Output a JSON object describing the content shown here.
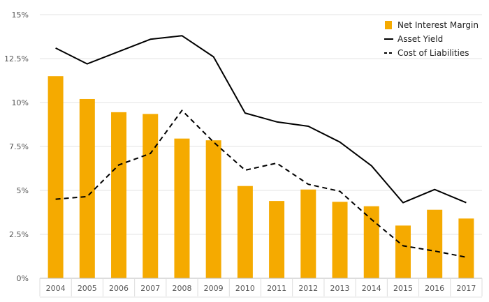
{
  "chart_data": {
    "type": "bar",
    "categories": [
      "2004",
      "2005",
      "2006",
      "2007",
      "2008",
      "2009",
      "2010",
      "2011",
      "2012",
      "2013",
      "2014",
      "2015",
      "2016",
      "2017"
    ],
    "series": [
      {
        "name": "Net Interest Margin",
        "type": "bar",
        "color": "#f5aa00",
        "values": [
          11.5,
          10.2,
          9.45,
          9.35,
          7.95,
          7.85,
          5.25,
          4.4,
          5.05,
          4.35,
          4.1,
          3.0,
          3.9,
          3.4
        ]
      },
      {
        "name": "Asset Yield",
        "type": "line",
        "style": "solid",
        "color": "#000000",
        "values": [
          13.1,
          12.2,
          12.9,
          13.6,
          13.8,
          12.6,
          9.4,
          8.9,
          8.65,
          7.75,
          6.4,
          4.3,
          5.05,
          4.3
        ]
      },
      {
        "name": "Cost of Liabilities",
        "type": "line",
        "style": "dashed",
        "color": "#000000",
        "values": [
          4.5,
          4.65,
          6.45,
          7.1,
          9.55,
          7.75,
          6.15,
          6.55,
          5.35,
          4.95,
          3.35,
          1.85,
          1.55,
          1.2
        ]
      }
    ],
    "y_ticks": [
      "0%",
      "2.5%",
      "5%",
      "7.5%",
      "10%",
      "12.5%",
      "15%"
    ],
    "ylim": [
      0,
      15
    ],
    "grid": true,
    "legend_position": "top-right"
  }
}
